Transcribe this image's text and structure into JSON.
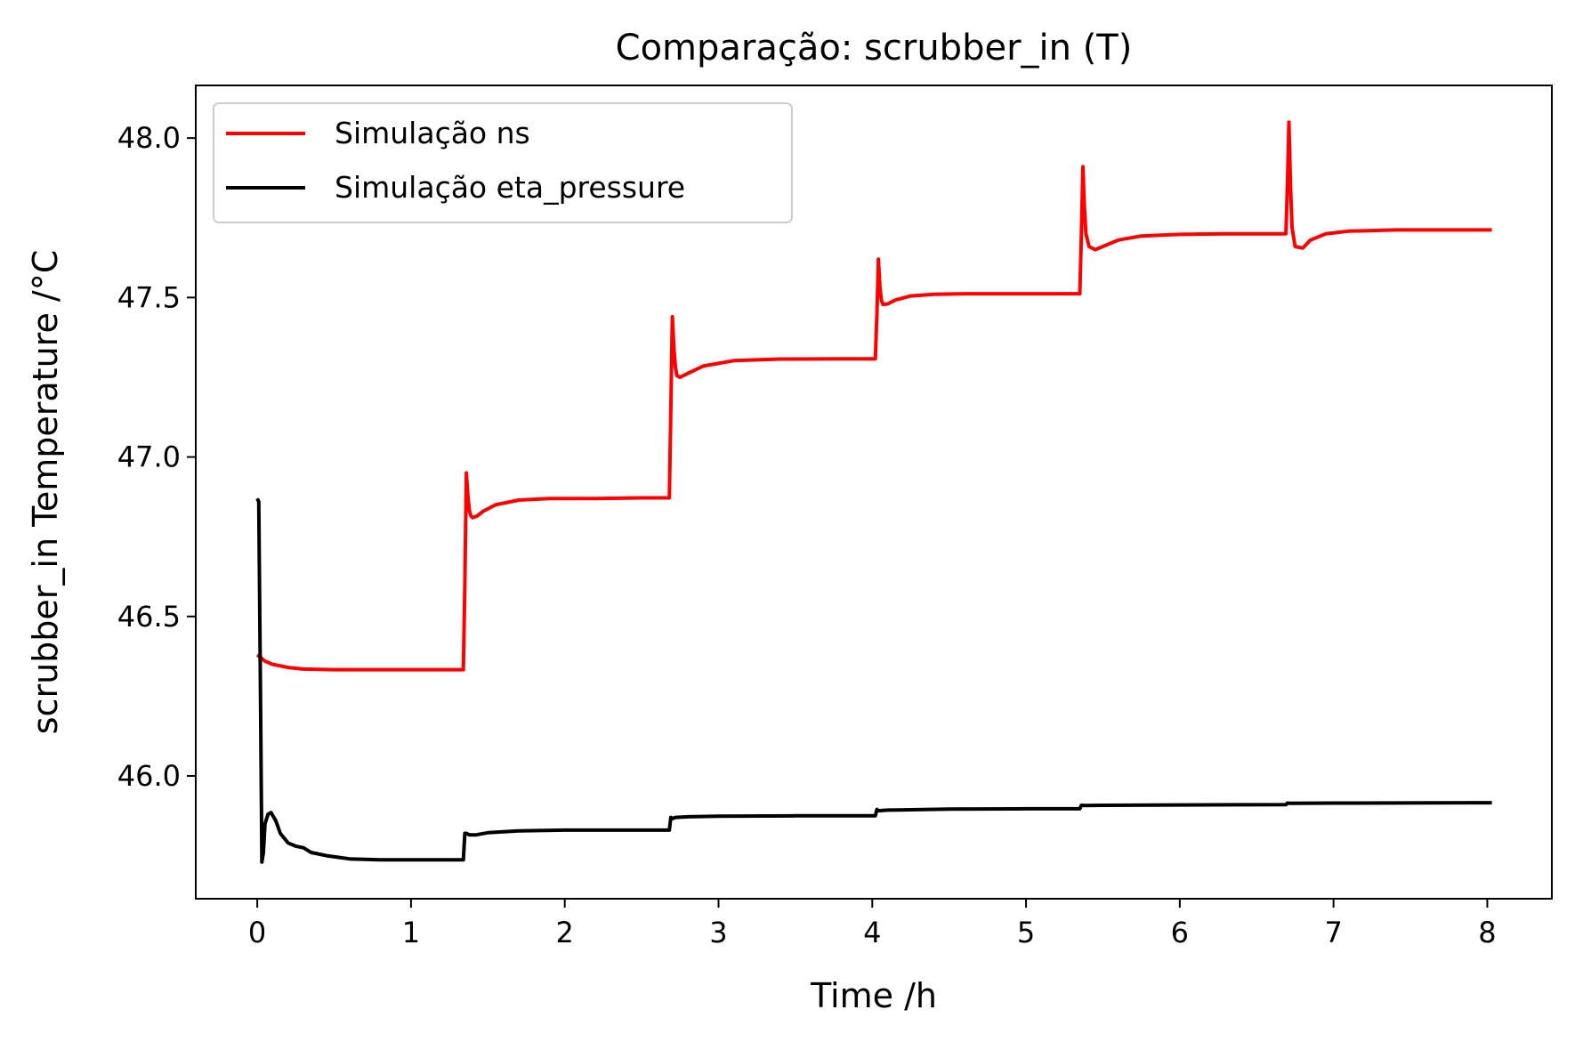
{
  "chart_data": {
    "type": "line",
    "title": "Comparação: scrubber_in (T)",
    "xlabel": "Time /h",
    "ylabel": "scrubber_in Temperature /°C",
    "xlim": [
      -0.4,
      8.42
    ],
    "ylim": [
      45.615,
      48.165
    ],
    "xticks": [
      0,
      1,
      2,
      3,
      4,
      5,
      6,
      7,
      8
    ],
    "yticks": [
      46.0,
      46.5,
      47.0,
      47.5,
      48.0
    ],
    "xtick_labels": [
      "0",
      "1",
      "2",
      "3",
      "4",
      "5",
      "6",
      "7",
      "8"
    ],
    "ytick_labels": [
      "46.0",
      "46.5",
      "47.0",
      "47.5",
      "48.0"
    ],
    "grid": false,
    "legend_position": "top-left",
    "series": [
      {
        "name": "Simulação ns",
        "color": "#ff0000",
        "x": [
          0,
          0.05,
          0.1,
          0.2,
          0.3,
          0.5,
          0.8,
          1.0,
          1.34,
          1.35,
          1.36,
          1.37,
          1.38,
          1.39,
          1.4,
          1.43,
          1.47,
          1.55,
          1.7,
          1.9,
          2.2,
          2.5,
          2.68,
          2.69,
          2.7,
          2.71,
          2.72,
          2.73,
          2.75,
          2.8,
          2.9,
          3.1,
          3.4,
          3.8,
          4.02,
          4.03,
          4.04,
          4.05,
          4.06,
          4.07,
          4.1,
          4.15,
          4.25,
          4.4,
          4.6,
          5.0,
          5.35,
          5.36,
          5.37,
          5.38,
          5.39,
          5.41,
          5.45,
          5.5,
          5.6,
          5.75,
          6.0,
          6.3,
          6.69,
          6.7,
          6.71,
          6.72,
          6.73,
          6.75,
          6.8,
          6.85,
          6.95,
          7.1,
          7.4,
          7.7,
          8.03
        ],
        "y": [
          46.38,
          46.36,
          46.35,
          46.34,
          46.335,
          46.333,
          46.333,
          46.333,
          46.333,
          46.6,
          46.95,
          46.88,
          46.83,
          46.815,
          46.81,
          46.815,
          46.83,
          46.85,
          46.865,
          46.87,
          46.87,
          46.872,
          46.872,
          47.15,
          47.44,
          47.34,
          47.28,
          47.255,
          47.25,
          47.262,
          47.285,
          47.302,
          47.307,
          47.308,
          47.308,
          47.45,
          47.62,
          47.53,
          47.49,
          47.478,
          47.48,
          47.492,
          47.505,
          47.51,
          47.512,
          47.512,
          47.512,
          47.7,
          47.91,
          47.78,
          47.7,
          47.66,
          47.65,
          47.66,
          47.68,
          47.693,
          47.698,
          47.7,
          47.7,
          47.85,
          48.05,
          47.85,
          47.72,
          47.66,
          47.655,
          47.68,
          47.7,
          47.708,
          47.712,
          47.712,
          47.712
        ]
      },
      {
        "name": "Simulação eta_pressure",
        "color": "#000000",
        "x": [
          0,
          0.01,
          0.02,
          0.03,
          0.04,
          0.05,
          0.07,
          0.09,
          0.12,
          0.15,
          0.2,
          0.25,
          0.3,
          0.35,
          0.45,
          0.6,
          0.8,
          1.0,
          1.34,
          1.35,
          1.36,
          1.38,
          1.42,
          1.5,
          1.7,
          2.0,
          2.5,
          2.68,
          2.69,
          2.7,
          2.72,
          2.8,
          3.0,
          3.5,
          4.02,
          4.03,
          4.04,
          4.1,
          4.5,
          5.0,
          5.35,
          5.36,
          5.38,
          5.5,
          6.0,
          6.69,
          6.7,
          6.72,
          7.0,
          8.03
        ],
        "y": [
          46.87,
          46.86,
          46.3,
          45.73,
          45.76,
          45.85,
          45.88,
          45.885,
          45.86,
          45.82,
          45.79,
          45.78,
          45.775,
          45.76,
          45.75,
          45.74,
          45.737,
          45.737,
          45.737,
          45.82,
          45.82,
          45.815,
          45.815,
          45.822,
          45.828,
          45.83,
          45.83,
          45.83,
          45.87,
          45.866,
          45.87,
          45.872,
          45.874,
          45.875,
          45.875,
          45.895,
          45.891,
          45.893,
          45.896,
          45.897,
          45.897,
          45.908,
          45.907,
          45.908,
          45.909,
          45.91,
          45.915,
          45.914,
          45.915,
          45.916
        ]
      }
    ]
  }
}
